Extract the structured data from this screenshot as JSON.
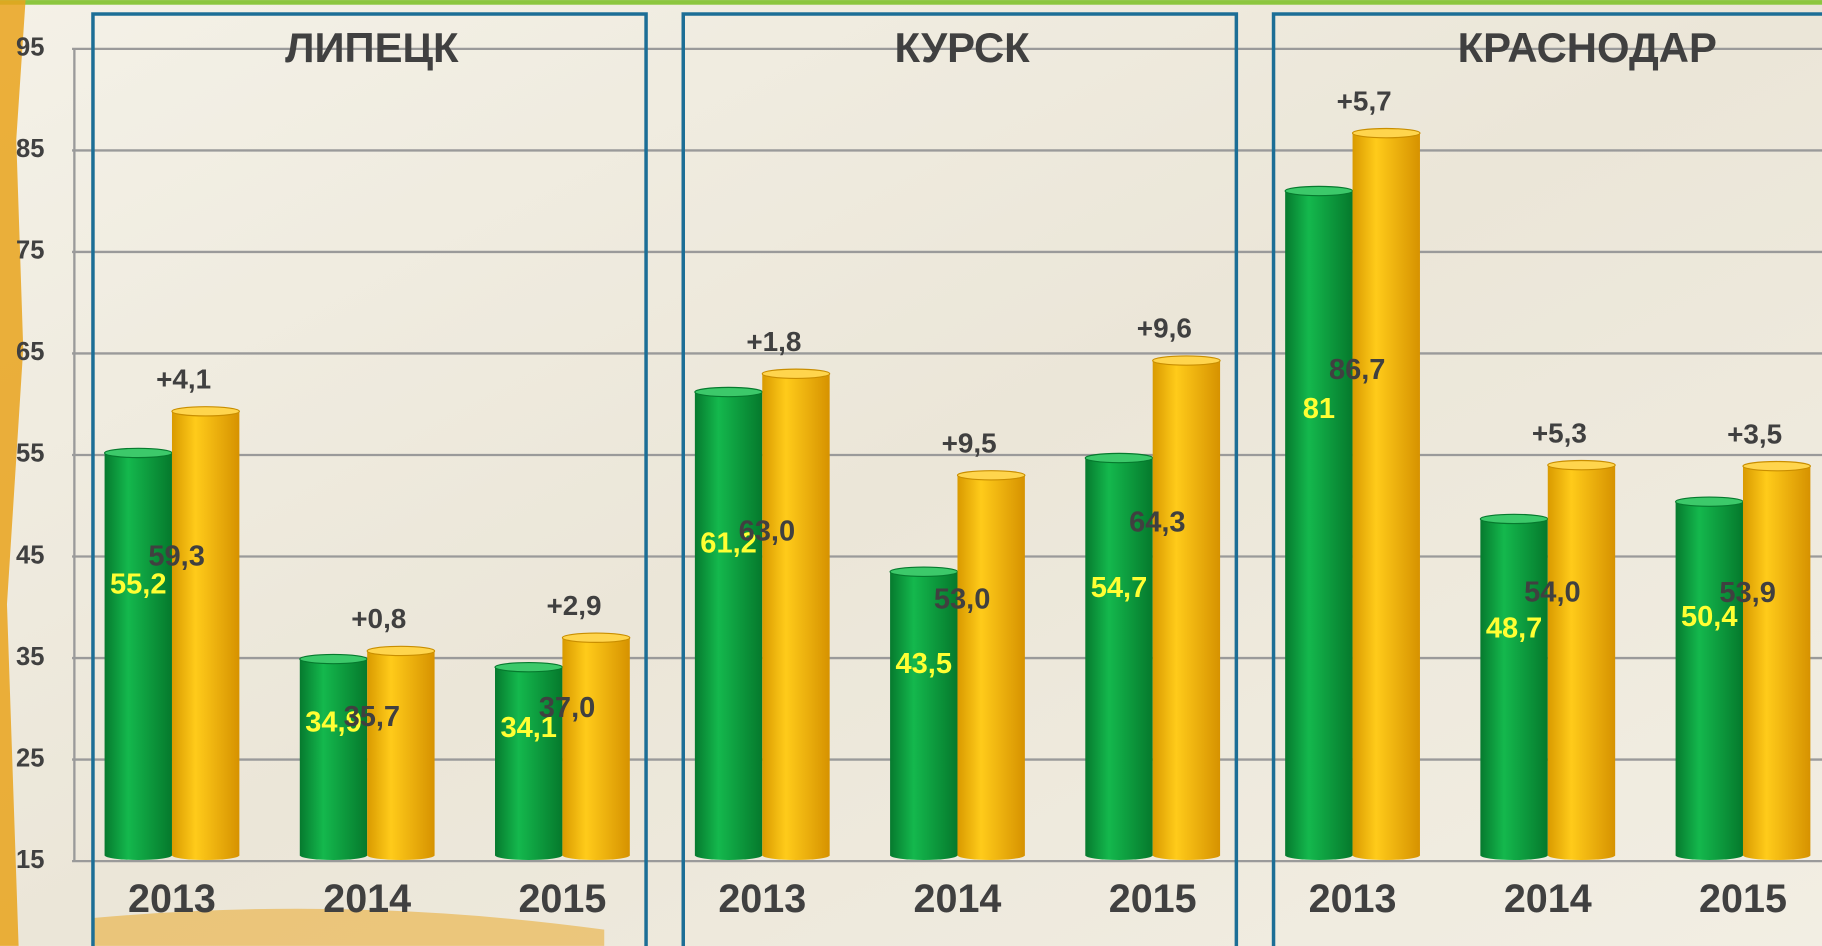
{
  "chart_data": {
    "type": "bar",
    "ylim": [
      15,
      95
    ],
    "yticks": [
      15,
      25,
      35,
      45,
      55,
      65,
      75,
      85,
      95
    ],
    "grid": true,
    "panels": [
      {
        "title": "ЛИПЕЦК",
        "categories": [
          "2013",
          "2014",
          "2015"
        ],
        "annotations": [
          "+4,1",
          "+0,8",
          "+2,9"
        ],
        "series": [
          {
            "color": "#0aa140",
            "values": [
              55.2,
              34.9,
              34.1
            ],
            "value_labels": [
              "55,2",
              "34,9",
              "34,1"
            ]
          },
          {
            "color": "#f5b800",
            "values": [
              59.3,
              35.7,
              37.0
            ],
            "value_labels": [
              "59,3",
              "35,7",
              "37,0"
            ]
          }
        ]
      },
      {
        "title": "КУРСК",
        "categories": [
          "2013",
          "2014",
          "2015"
        ],
        "annotations": [
          "+1,8",
          "+9,5",
          "+9,6"
        ],
        "series": [
          {
            "color": "#0aa140",
            "values": [
              61.2,
              43.5,
              54.7
            ],
            "value_labels": [
              "61,2",
              "43,5",
              "54,7"
            ]
          },
          {
            "color": "#f5b800",
            "values": [
              63.0,
              53.0,
              64.3
            ],
            "value_labels": [
              "63,0",
              "53,0",
              "64,3"
            ]
          }
        ]
      },
      {
        "title": "КРАСНОДАР",
        "categories": [
          "2013",
          "2014",
          "2015"
        ],
        "annotations": [
          "+5,7",
          "+5,3",
          "+3,5"
        ],
        "series": [
          {
            "color": "#0aa140",
            "values": [
              81,
              48.7,
              50.4
            ],
            "value_labels": [
              "81",
              "48,7",
              "50,4"
            ]
          },
          {
            "color": "#f5b800",
            "values": [
              86.7,
              54.0,
              53.9
            ],
            "value_labels": [
              "86,7",
              "54,0",
              "53,9"
            ]
          }
        ]
      }
    ]
  }
}
